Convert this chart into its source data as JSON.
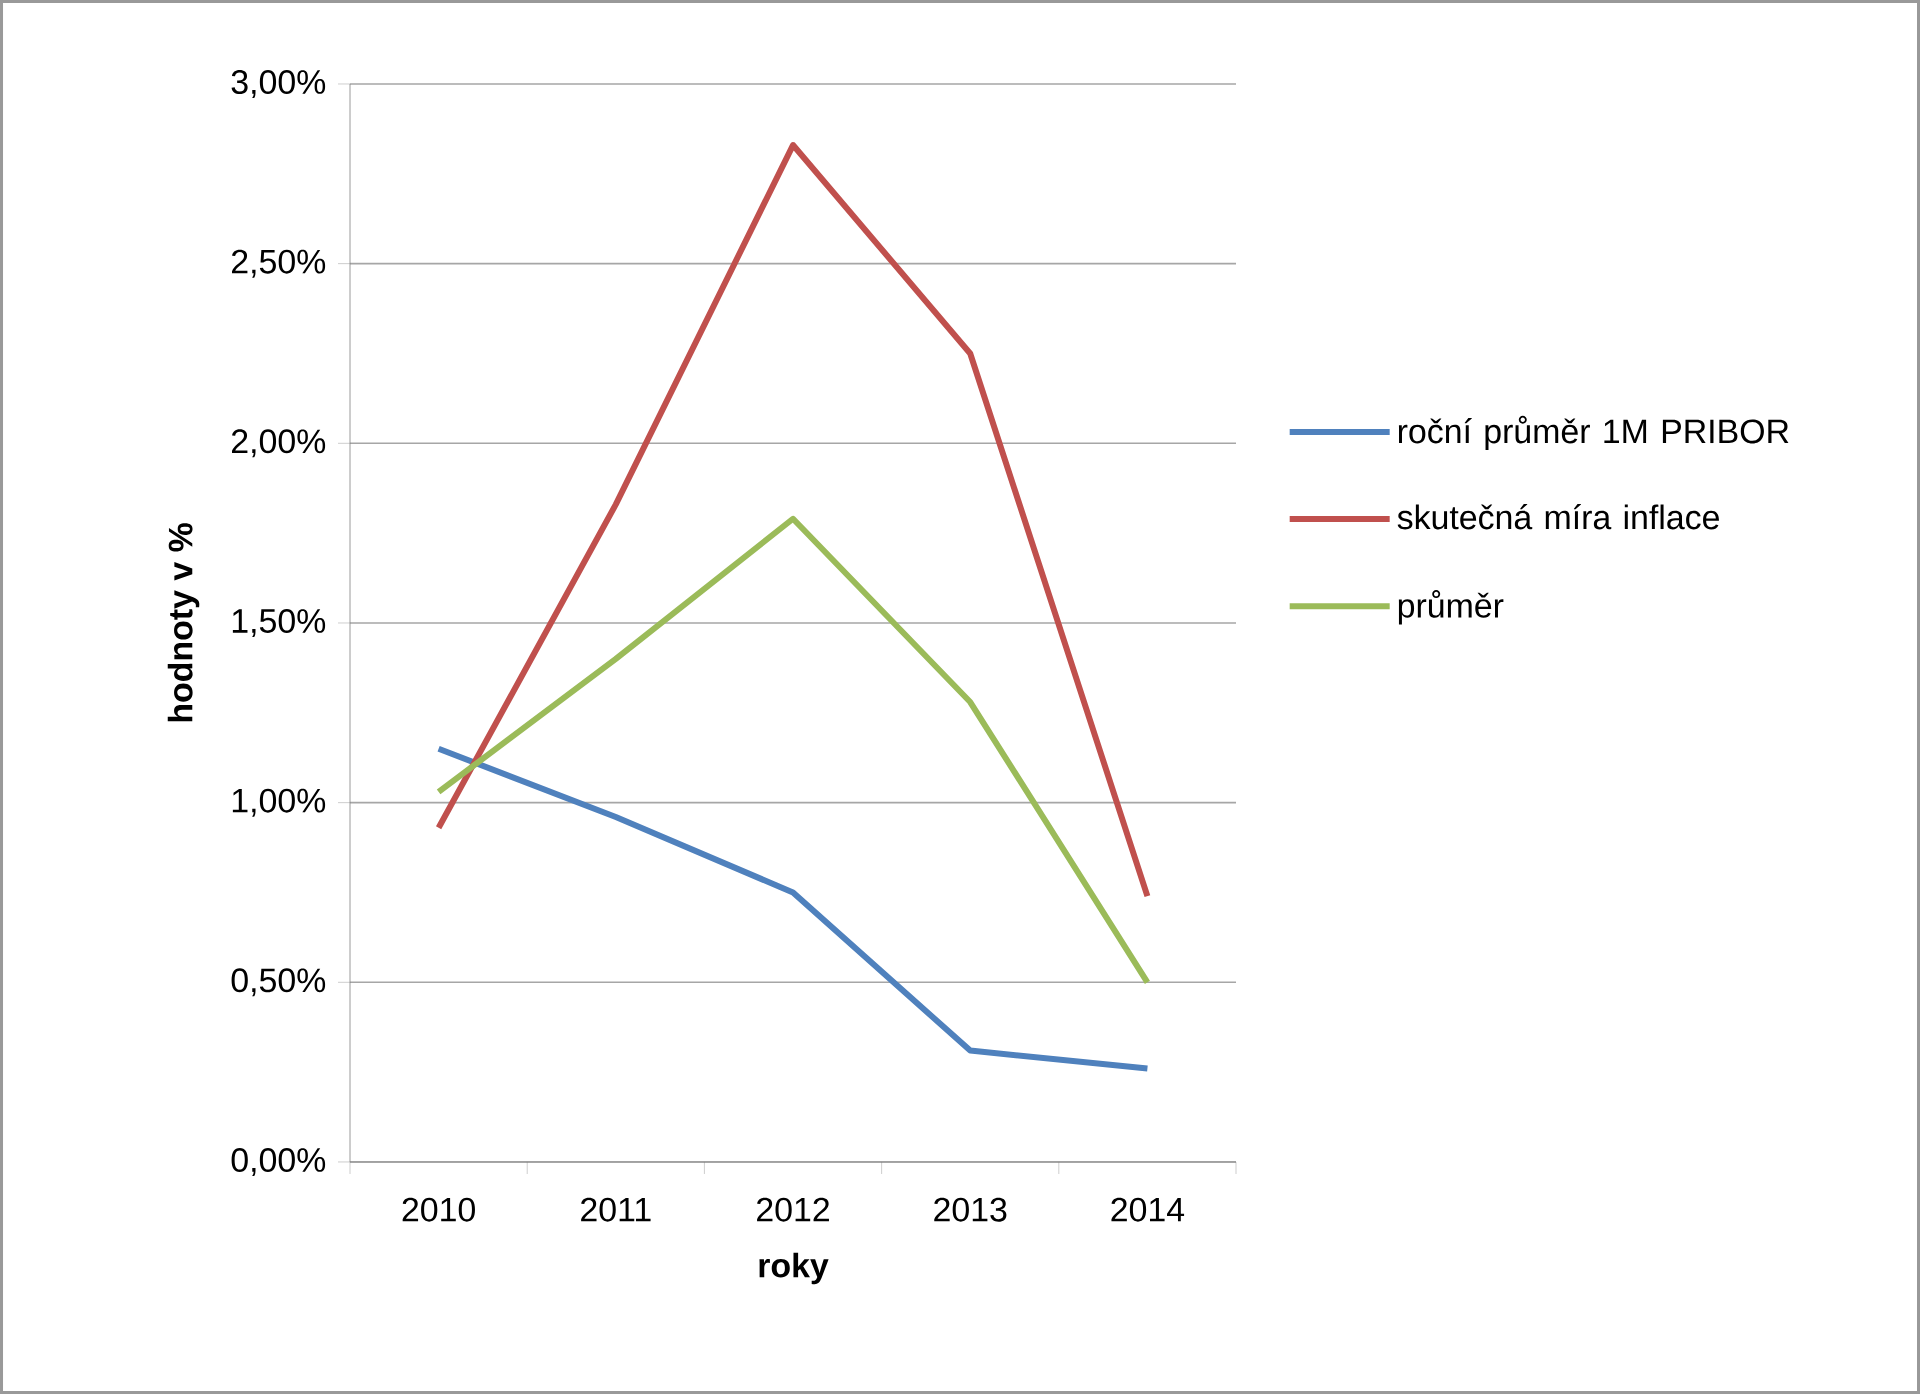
{
  "chart_data": {
    "type": "line",
    "xlabel": "roky",
    "ylabel": "hodnoty v %",
    "categories": [
      "2010",
      "2011",
      "2012",
      "2013",
      "2014"
    ],
    "series": [
      {
        "name": "roční průměr 1M PRIBOR",
        "color": "#4f81bd",
        "values": [
          1.15,
          0.96,
          0.75,
          0.31,
          0.26
        ]
      },
      {
        "name": "skutečná míra inflace",
        "color": "#c0504d",
        "values": [
          0.93,
          1.83,
          2.83,
          2.25,
          0.74
        ]
      },
      {
        "name": "průměr",
        "color": "#9bbb59",
        "values": [
          1.03,
          1.4,
          1.79,
          1.28,
          0.5
        ]
      }
    ],
    "ylim": [
      0,
      3
    ],
    "yticks": [
      {
        "value": 0,
        "label": "0,00%"
      },
      {
        "value": 0.5,
        "label": "0,50%"
      },
      {
        "value": 1,
        "label": "1,00%"
      },
      {
        "value": 1.5,
        "label": "1,50%"
      },
      {
        "value": 2,
        "label": "2,00%"
      },
      {
        "value": 2.5,
        "label": "2,50%"
      },
      {
        "value": 3,
        "label": "3,00%"
      }
    ],
    "grid": "y",
    "legend": "right",
    "marker": "none",
    "line_style": "solid"
  }
}
